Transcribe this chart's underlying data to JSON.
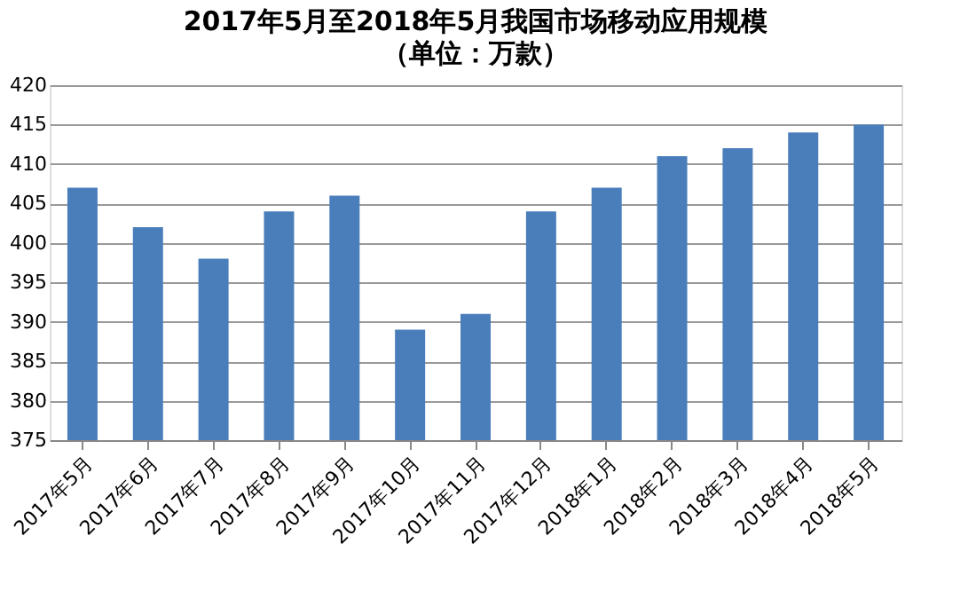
{
  "chart_data": {
    "type": "bar",
    "title": "2017年5月至2018年5月我国市场移动应用规模",
    "subtitle": "（单位：万款）",
    "categories": [
      "2017年5月",
      "2017年6月",
      "2017年7月",
      "2017年8月",
      "2017年9月",
      "2017年10月",
      "2017年11月",
      "2017年12月",
      "2018年1月",
      "2018年2月",
      "2018年3月",
      "2018年4月",
      "2018年5月"
    ],
    "values": [
      407,
      402,
      398,
      404,
      406,
      389,
      391,
      404,
      407,
      411,
      412,
      414,
      415
    ],
    "color": "#4a7ebb",
    "ylim": [
      375,
      420
    ],
    "yticks": [
      375,
      380,
      385,
      390,
      395,
      400,
      405,
      410,
      415,
      420
    ],
    "grid": "y"
  }
}
